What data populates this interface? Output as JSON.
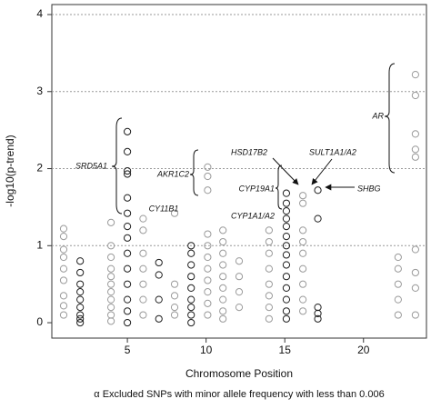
{
  "chart_data": {
    "type": "scatter",
    "xlabel": "Chromosome Position",
    "ylabel": "-log10(p-trend)",
    "footnote": "α Excluded SNPs with minor allele frequency with less than 0.006",
    "xlim": [
      0.2,
      24
    ],
    "xticks": [
      5,
      10,
      15,
      20
    ],
    "ylim": [
      -0.2,
      4.13
    ],
    "yticks": [
      0,
      1,
      2,
      3,
      4
    ],
    "grid": true,
    "annotations": [
      "SRD5A1",
      "AKR1C2",
      "CY11B1",
      "HSD17B2",
      "SULT1A1/A2",
      "CYP19A1",
      "CYP1A1/A2",
      "SHBG",
      "AR"
    ],
    "series": [
      {
        "color": "#1e1e1e",
        "x": [
          2,
          2,
          2,
          2,
          2,
          2,
          2,
          2,
          2,
          5,
          5,
          5,
          5,
          5,
          5,
          5,
          5,
          5,
          5,
          5,
          5,
          5,
          5,
          7,
          7,
          7,
          7,
          9.05,
          9.05,
          9.05,
          9.05,
          9.05,
          9.05,
          9.05,
          9.05,
          9.05,
          15.1,
          15.1,
          15.1,
          15.1,
          15.1,
          15.1,
          15.1,
          15.1,
          15.1,
          15.1,
          15.1,
          15.1,
          15.1,
          15.1,
          17.1,
          17.1,
          17.1,
          17.1,
          17.1
        ],
        "values": [
          0.8,
          0.65,
          0.5,
          0.4,
          0.3,
          0.2,
          0.1,
          0.05,
          0,
          2.48,
          2.22,
          1.97,
          1.93,
          1.62,
          1.42,
          1.25,
          1.1,
          0.9,
          0.7,
          0.5,
          0.3,
          0.15,
          0,
          0.78,
          0.62,
          0.3,
          0.05,
          1,
          0.9,
          0.75,
          0.6,
          0.45,
          0.3,
          0.2,
          0.1,
          0,
          1.68,
          1.55,
          1.45,
          1.35,
          1.25,
          1.12,
          1,
          0.88,
          0.75,
          0.6,
          0.45,
          0.3,
          0.15,
          0.05,
          1.72,
          1.35,
          0.2,
          0.12,
          0.05
        ]
      },
      {
        "color": "#9a9a9a",
        "x": [
          0.95,
          0.95,
          0.95,
          0.95,
          0.95,
          0.95,
          0.95,
          0.95,
          0.95,
          3.96,
          3.96,
          3.96,
          3.96,
          3.96,
          3.96,
          3.96,
          3.96,
          3.96,
          3.96,
          3.96,
          6,
          6,
          6,
          6,
          6,
          6,
          6,
          8,
          8,
          8,
          8,
          8,
          10.1,
          10.1,
          10.1,
          10.1,
          10.1,
          10.1,
          10.1,
          10.1,
          10.1,
          10.1,
          10.1,
          11.07,
          11.07,
          11.07,
          11.07,
          11.07,
          11.07,
          11.07,
          11.07,
          11.07,
          12.1,
          12.1,
          12.1,
          12.1,
          14,
          14,
          14,
          14,
          14,
          14,
          14,
          14,
          16.15,
          16.15,
          16.15,
          16.15,
          16.15,
          16.15,
          16.15,
          16.15,
          16.15,
          22.2,
          22.2,
          22.2,
          22.2,
          22.2,
          23.3,
          23.3,
          23.3,
          23.3,
          23.3,
          23.3,
          23.3,
          23.3,
          23.3
        ],
        "values": [
          1.22,
          1.12,
          0.95,
          0.85,
          0.7,
          0.55,
          0.35,
          0.22,
          0.1,
          1.3,
          1,
          0.85,
          0.7,
          0.6,
          0.5,
          0.4,
          0.3,
          0.2,
          0.1,
          0.02,
          1.35,
          1.2,
          0.9,
          0.7,
          0.5,
          0.3,
          0.1,
          1.42,
          0.5,
          0.35,
          0.2,
          0.1,
          2.02,
          1.9,
          1.72,
          1.15,
          1,
          0.85,
          0.7,
          0.55,
          0.4,
          0.25,
          0.1,
          1.2,
          1.05,
          0.9,
          0.75,
          0.6,
          0.45,
          0.3,
          0.15,
          0.05,
          0.8,
          0.6,
          0.4,
          0.2,
          1.2,
          1.05,
          0.9,
          0.7,
          0.5,
          0.35,
          0.2,
          0.05,
          1.65,
          1.55,
          1.2,
          1.05,
          0.9,
          0.7,
          0.5,
          0.3,
          0.15,
          0.85,
          0.7,
          0.5,
          0.3,
          0.1,
          3.22,
          2.95,
          2.45,
          2.25,
          2.15,
          0.95,
          0.65,
          0.45,
          0.1
        ]
      }
    ]
  }
}
